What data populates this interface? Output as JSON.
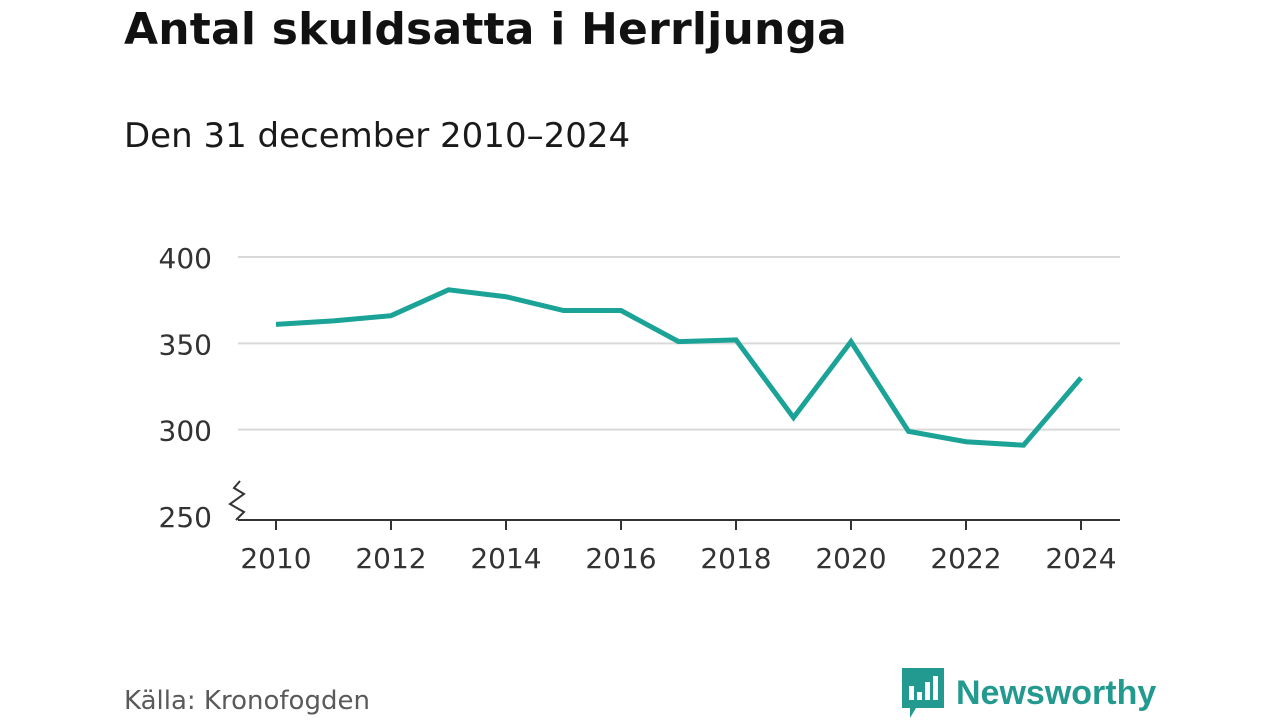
{
  "header": {
    "title": "Antal skuldsatta i Herrljunga",
    "subtitle": "Den 31 december 2010–2024"
  },
  "footer": {
    "source": "Källa: Kronofogden",
    "brand": "Newsworthy"
  },
  "colors": {
    "line": "#1aa396",
    "grid": "#d9d9d9",
    "axis": "#333333",
    "brand": "#239a8f"
  },
  "chart_data": {
    "type": "line",
    "title": "Antal skuldsatta i Herrljunga",
    "subtitle": "Den 31 december 2010–2024",
    "xlabel": "",
    "ylabel": "",
    "x": [
      2010,
      2011,
      2012,
      2013,
      2014,
      2015,
      2016,
      2017,
      2018,
      2019,
      2020,
      2021,
      2022,
      2023,
      2024
    ],
    "series": [
      {
        "name": "Antal skuldsatta",
        "values": [
          361,
          363,
          366,
          381,
          377,
          369,
          369,
          351,
          352,
          307,
          351,
          299,
          293,
          291,
          330
        ]
      }
    ],
    "ylim": [
      250,
      400
    ],
    "yticks": [
      250,
      300,
      350,
      400
    ],
    "xticks": [
      2010,
      2012,
      2014,
      2016,
      2018,
      2020,
      2022,
      2024
    ],
    "ytick_labels": [
      "250",
      "300",
      "350",
      "400"
    ],
    "xtick_labels": [
      "2010",
      "2012",
      "2014",
      "2016",
      "2018",
      "2020",
      "2022",
      "2024"
    ],
    "axis_break": true,
    "grid": true,
    "legend": "none"
  }
}
